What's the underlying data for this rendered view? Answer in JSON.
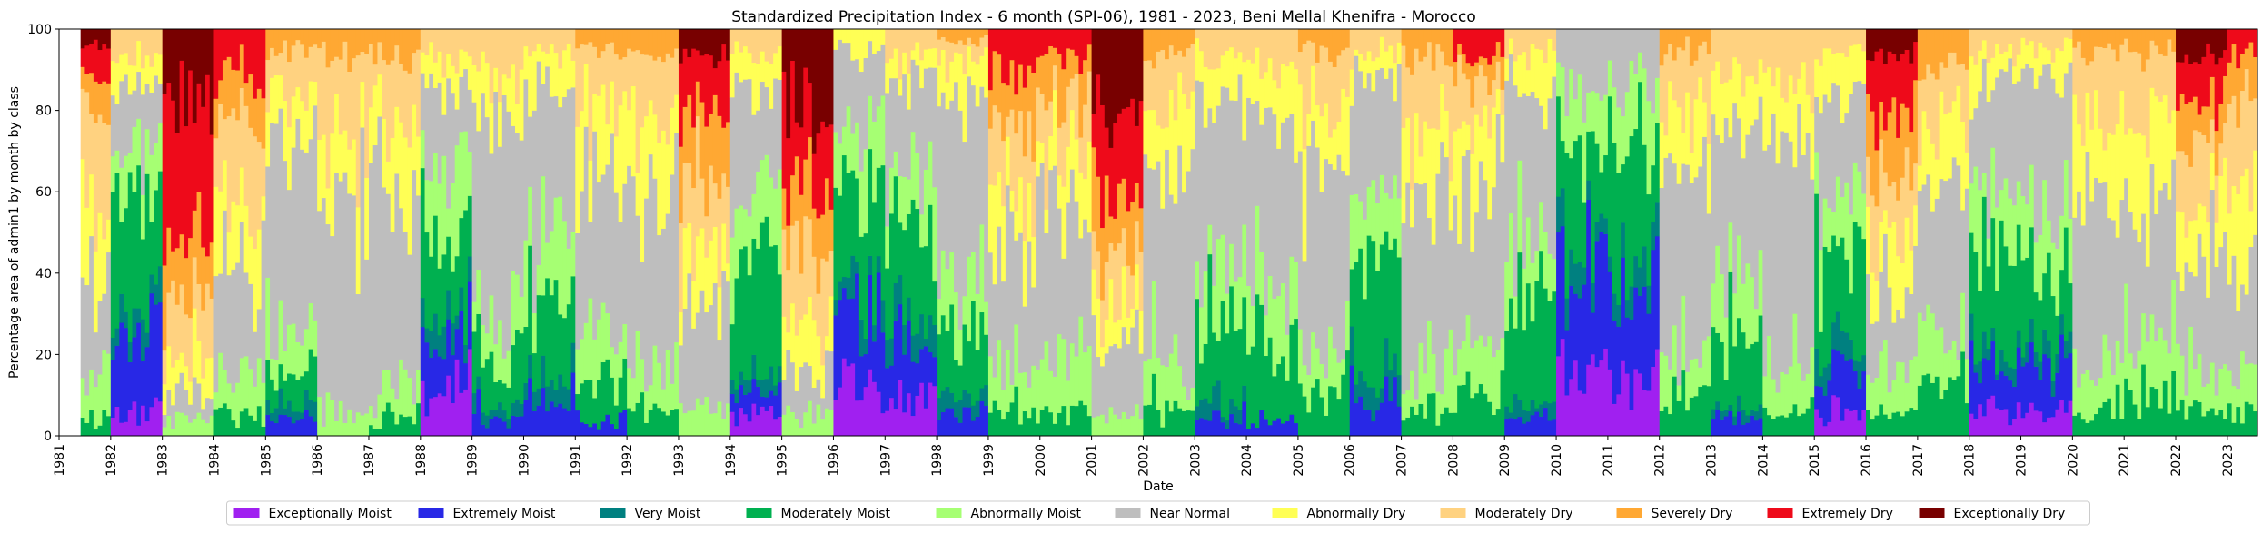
{
  "chart_data": {
    "type": "bar",
    "stacked": true,
    "title": "Standardized Precipitation Index - 6 month (SPI-06), 1981 - 2023, Beni Mellal Khenifra - Morocco",
    "xlabel": "Date",
    "ylabel": "Percentage area of admin1 by month by class",
    "ylim": [
      0,
      100
    ],
    "yticks": [
      0,
      20,
      40,
      60,
      80,
      100
    ],
    "xticks": [
      "1981",
      "1982",
      "1983",
      "1984",
      "1985",
      "1986",
      "1987",
      "1988",
      "1989",
      "1990",
      "1991",
      "1992",
      "1993",
      "1994",
      "1995",
      "1996",
      "1997",
      "1998",
      "1999",
      "2000",
      "2001",
      "2002",
      "2003",
      "2004",
      "2005",
      "2006",
      "2007",
      "2008",
      "2009",
      "2010",
      "2011",
      "2012",
      "2013",
      "2014",
      "2015",
      "2016",
      "2017",
      "2018",
      "2019",
      "2020",
      "2021",
      "2022",
      "2023"
    ],
    "x_range": [
      "1981-01",
      "2023-08"
    ],
    "data_start": "1981-06",
    "data_end": "2023-07",
    "grid": false,
    "legend_position": "bottom-center",
    "classes": [
      {
        "name": "Exceptionally Moist",
        "color": "#a020f0"
      },
      {
        "name": "Extremely Moist",
        "color": "#2828e6"
      },
      {
        "name": "Very Moist",
        "color": "#008080"
      },
      {
        "name": "Moderately Moist",
        "color": "#00b050"
      },
      {
        "name": "Abnormally Moist",
        "color": "#a6ff73"
      },
      {
        "name": "Near Normal",
        "color": "#bebebe"
      },
      {
        "name": "Abnormally Dry",
        "color": "#ffff55"
      },
      {
        "name": "Moderately Dry",
        "color": "#ffd280"
      },
      {
        "name": "Severely Dry",
        "color": "#ffa833"
      },
      {
        "name": "Extremely Dry",
        "color": "#ee0a1a"
      },
      {
        "name": "Exceptionally Dry",
        "color": "#780000"
      }
    ],
    "series_order_bottom_to_top": [
      "Exceptionally Moist",
      "Extremely Moist",
      "Very Moist",
      "Moderately Moist",
      "Abnormally Moist",
      "Near Normal",
      "Abnormally Dry",
      "Moderately Dry",
      "Severely Dry",
      "Extremely Dry",
      "Exceptionally Dry"
    ],
    "yearly_profile": {
      "note_units": "approx. percent area shares per class, year by year",
      "1981": [
        0,
        0,
        0,
        2,
        10,
        20,
        25,
        25,
        8,
        8,
        2
      ],
      "1982": [
        5,
        20,
        5,
        30,
        10,
        20,
        5,
        5,
        0,
        0,
        0
      ],
      "1983": [
        0,
        0,
        0,
        0,
        3,
        5,
        7,
        15,
        15,
        35,
        20
      ],
      "1984": [
        0,
        0,
        0,
        5,
        10,
        30,
        15,
        20,
        10,
        10,
        0
      ],
      "1985": [
        0,
        3,
        3,
        10,
        10,
        50,
        10,
        10,
        4,
        0,
        0
      ],
      "1986": [
        0,
        0,
        0,
        0,
        5,
        55,
        15,
        20,
        5,
        0,
        0
      ],
      "1987": [
        0,
        0,
        0,
        3,
        7,
        55,
        15,
        15,
        5,
        0,
        0
      ],
      "1988": [
        10,
        15,
        5,
        25,
        15,
        20,
        5,
        5,
        0,
        0,
        0
      ],
      "1989": [
        0,
        3,
        2,
        10,
        10,
        55,
        10,
        10,
        0,
        0,
        0
      ],
      "1990": [
        0,
        10,
        5,
        20,
        15,
        35,
        10,
        5,
        0,
        0,
        0
      ],
      "1991": [
        0,
        2,
        0,
        10,
        10,
        45,
        15,
        15,
        3,
        0,
        0
      ],
      "1992": [
        0,
        0,
        0,
        5,
        10,
        45,
        20,
        15,
        5,
        0,
        0
      ],
      "1993": [
        0,
        0,
        0,
        0,
        5,
        25,
        15,
        20,
        15,
        15,
        5
      ],
      "1994": [
        5,
        5,
        3,
        30,
        15,
        30,
        7,
        5,
        0,
        0,
        0
      ],
      "1995": [
        0,
        0,
        0,
        0,
        5,
        10,
        10,
        20,
        15,
        20,
        20
      ],
      "1996": [
        15,
        20,
        5,
        25,
        15,
        15,
        5,
        0,
        0,
        0,
        0
      ],
      "1997": [
        10,
        15,
        5,
        25,
        15,
        20,
        5,
        5,
        0,
        0,
        0
      ],
      "1998": [
        0,
        5,
        3,
        20,
        15,
        40,
        10,
        5,
        2,
        0,
        0
      ],
      "1999": [
        0,
        0,
        0,
        5,
        10,
        35,
        15,
        15,
        10,
        10,
        0
      ],
      "2000": [
        0,
        0,
        0,
        5,
        10,
        40,
        15,
        15,
        10,
        5,
        0
      ],
      "2001": [
        0,
        0,
        0,
        0,
        5,
        15,
        10,
        15,
        15,
        20,
        20
      ],
      "2002": [
        0,
        0,
        0,
        5,
        10,
        50,
        15,
        15,
        5,
        0,
        0
      ],
      "2003": [
        0,
        3,
        2,
        20,
        15,
        45,
        10,
        5,
        0,
        0,
        0
      ],
      "2004": [
        0,
        2,
        0,
        20,
        15,
        45,
        10,
        8,
        0,
        0,
        0
      ],
      "2005": [
        0,
        0,
        0,
        10,
        10,
        45,
        15,
        15,
        5,
        0,
        0
      ],
      "2006": [
        0,
        10,
        5,
        30,
        15,
        30,
        5,
        5,
        0,
        0,
        0
      ],
      "2007": [
        0,
        0,
        0,
        5,
        10,
        50,
        15,
        15,
        5,
        0,
        0
      ],
      "2008": [
        0,
        0,
        0,
        10,
        10,
        40,
        15,
        15,
        5,
        5,
        0
      ],
      "2009": [
        0,
        3,
        2,
        25,
        15,
        40,
        10,
        5,
        0,
        0,
        0
      ],
      "2010": [
        20,
        25,
        5,
        20,
        15,
        15,
        0,
        0,
        0,
        0,
        0
      ],
      "2011": [
        15,
        20,
        5,
        30,
        15,
        15,
        0,
        0,
        0,
        0,
        0
      ],
      "2012": [
        0,
        0,
        0,
        10,
        10,
        45,
        15,
        15,
        5,
        0,
        0
      ],
      "2013": [
        0,
        3,
        2,
        20,
        15,
        40,
        10,
        10,
        0,
        0,
        0
      ],
      "2014": [
        0,
        0,
        0,
        5,
        10,
        55,
        15,
        15,
        0,
        0,
        0
      ],
      "2015": [
        5,
        10,
        5,
        25,
        15,
        25,
        10,
        5,
        0,
        0,
        0
      ],
      "2016": [
        0,
        0,
        0,
        5,
        10,
        20,
        15,
        15,
        15,
        15,
        5
      ],
      "2017": [
        0,
        0,
        0,
        10,
        10,
        40,
        15,
        15,
        10,
        0,
        0
      ],
      "2018": [
        5,
        10,
        3,
        25,
        15,
        30,
        7,
        5,
        0,
        0,
        0
      ],
      "2019": [
        5,
        10,
        3,
        20,
        15,
        35,
        7,
        5,
        0,
        0,
        0
      ],
      "2020": [
        0,
        0,
        0,
        5,
        10,
        40,
        20,
        20,
        5,
        0,
        0
      ],
      "2021": [
        0,
        0,
        0,
        10,
        15,
        35,
        20,
        15,
        5,
        0,
        0
      ],
      "2022": [
        0,
        0,
        0,
        5,
        10,
        30,
        15,
        15,
        10,
        10,
        5
      ],
      "2023": [
        0,
        0,
        0,
        5,
        10,
        30,
        20,
        20,
        10,
        5,
        0
      ]
    }
  }
}
